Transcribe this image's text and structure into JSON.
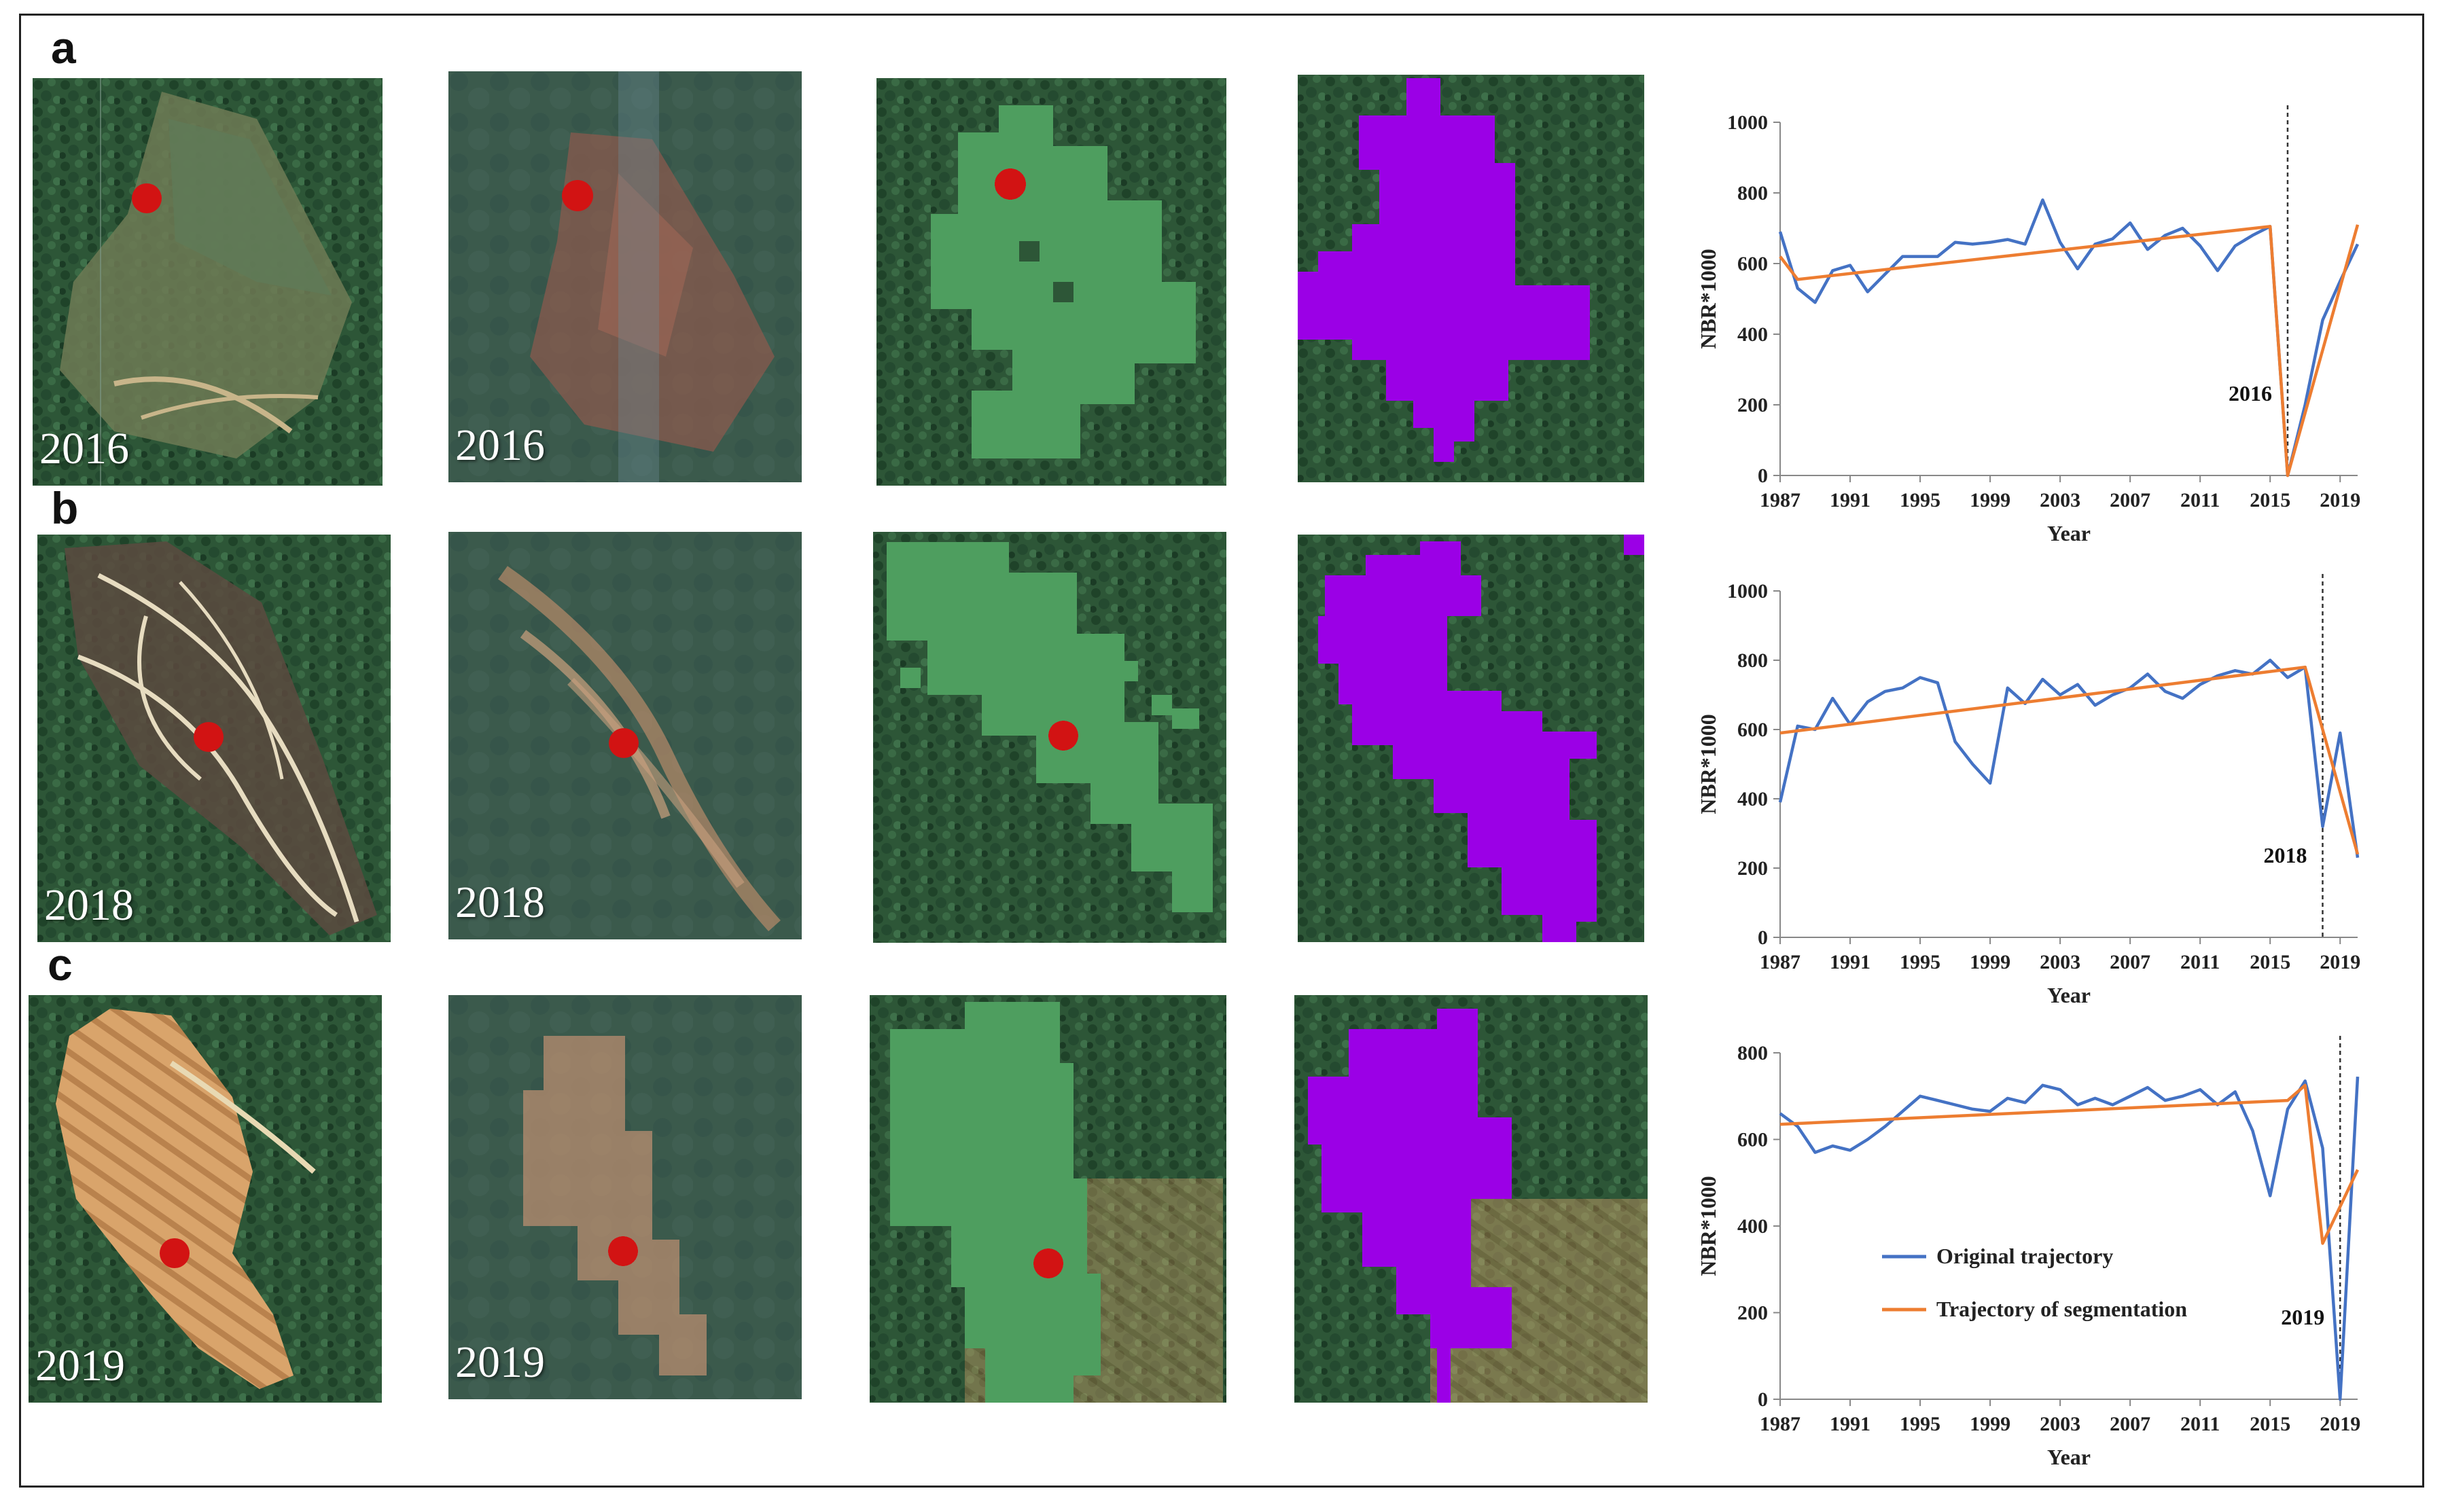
{
  "panels": [
    {
      "label": "a",
      "year_labels": [
        "2016",
        "2016"
      ]
    },
    {
      "label": "b",
      "year_labels": [
        "2018",
        "2018"
      ]
    },
    {
      "label": "c",
      "year_labels": [
        "2019",
        "2019"
      ]
    }
  ],
  "colors": {
    "forest": "#2f5a3b",
    "disturbance_green": "#4e9e5f",
    "segmentation_purple": "#9b00e6",
    "sample_point": "#d21313",
    "original_line": "#4472c4",
    "segment_line": "#ed7d31"
  },
  "chart_data": [
    {
      "type": "line",
      "title": "",
      "xlabel": "Year",
      "ylabel": "NBR*1000",
      "xlim": [
        1987,
        2020
      ],
      "ylim": [
        0,
        1000
      ],
      "yticks": [
        0,
        200,
        400,
        600,
        800,
        1000
      ],
      "xticks": [
        1987,
        1991,
        1995,
        1999,
        2003,
        2007,
        2011,
        2015,
        2019
      ],
      "event_year": 2016,
      "annotation": "2016",
      "series": [
        {
          "name": "Original trajectory",
          "x": [
            1987,
            1988,
            1989,
            1990,
            1991,
            1992,
            1993,
            1994,
            1995,
            1996,
            1997,
            1998,
            1999,
            2000,
            2001,
            2002,
            2003,
            2004,
            2005,
            2006,
            2007,
            2008,
            2009,
            2010,
            2011,
            2012,
            2013,
            2014,
            2015,
            2016,
            2017,
            2018,
            2019,
            2020
          ],
          "y": [
            690,
            530,
            490,
            580,
            595,
            520,
            570,
            620,
            620,
            620,
            660,
            655,
            660,
            668,
            655,
            780,
            660,
            585,
            655,
            670,
            715,
            640,
            680,
            700,
            650,
            580,
            650,
            680,
            705,
            0,
            200,
            440,
            550,
            655
          ]
        },
        {
          "name": "Trajectory of segmentation",
          "x": [
            1987,
            1988,
            2015,
            2016,
            2020
          ],
          "y": [
            620,
            555,
            705,
            0,
            710
          ]
        }
      ]
    },
    {
      "type": "line",
      "title": "",
      "xlabel": "Year",
      "ylabel": "NBR*1000",
      "xlim": [
        1987,
        2020
      ],
      "ylim": [
        0,
        1000
      ],
      "yticks": [
        0,
        200,
        400,
        600,
        800,
        1000
      ],
      "xticks": [
        1987,
        1991,
        1995,
        1999,
        2003,
        2007,
        2011,
        2015,
        2019
      ],
      "event_year": 2018,
      "annotation": "2018",
      "series": [
        {
          "name": "Original trajectory",
          "x": [
            1987,
            1988,
            1989,
            1990,
            1991,
            1992,
            1993,
            1994,
            1995,
            1996,
            1997,
            1998,
            1999,
            2000,
            2001,
            2002,
            2003,
            2004,
            2005,
            2006,
            2007,
            2008,
            2009,
            2010,
            2011,
            2012,
            2013,
            2014,
            2015,
            2016,
            2017,
            2018,
            2019,
            2020
          ],
          "y": [
            390,
            610,
            600,
            690,
            615,
            680,
            710,
            720,
            750,
            735,
            565,
            500,
            445,
            720,
            675,
            745,
            700,
            730,
            670,
            700,
            720,
            760,
            710,
            690,
            730,
            755,
            770,
            760,
            800,
            750,
            780,
            320,
            590,
            230
          ]
        },
        {
          "name": "Trajectory of segmentation",
          "x": [
            1987,
            2017,
            2020
          ],
          "y": [
            590,
            780,
            240
          ]
        }
      ]
    },
    {
      "type": "line",
      "title": "",
      "xlabel": "Year",
      "ylabel": "NBR*1000",
      "xlim": [
        1987,
        2020
      ],
      "ylim": [
        0,
        800
      ],
      "yticks": [
        0,
        200,
        400,
        600,
        800
      ],
      "xticks": [
        1987,
        1991,
        1995,
        1999,
        2003,
        2007,
        2011,
        2015,
        2019
      ],
      "event_year": 2019,
      "annotation": "2019",
      "legend": [
        "Original trajectory",
        "Trajectory  of segmentation"
      ],
      "series": [
        {
          "name": "Original trajectory",
          "x": [
            1987,
            1988,
            1989,
            1990,
            1991,
            1992,
            1993,
            1994,
            1995,
            1996,
            1997,
            1998,
            1999,
            2000,
            2001,
            2002,
            2003,
            2004,
            2005,
            2006,
            2007,
            2008,
            2009,
            2010,
            2011,
            2012,
            2013,
            2014,
            2015,
            2016,
            2017,
            2018,
            2019,
            2020
          ],
          "y": [
            660,
            630,
            570,
            585,
            575,
            600,
            630,
            665,
            700,
            690,
            680,
            670,
            665,
            695,
            685,
            725,
            715,
            680,
            695,
            680,
            700,
            720,
            690,
            700,
            715,
            680,
            710,
            620,
            470,
            670,
            735,
            580,
            0,
            745
          ]
        },
        {
          "name": "Trajectory  of segmentation",
          "x": [
            1987,
            2016,
            2017,
            2018,
            2020
          ],
          "y": [
            635,
            690,
            725,
            360,
            530
          ]
        }
      ]
    }
  ]
}
